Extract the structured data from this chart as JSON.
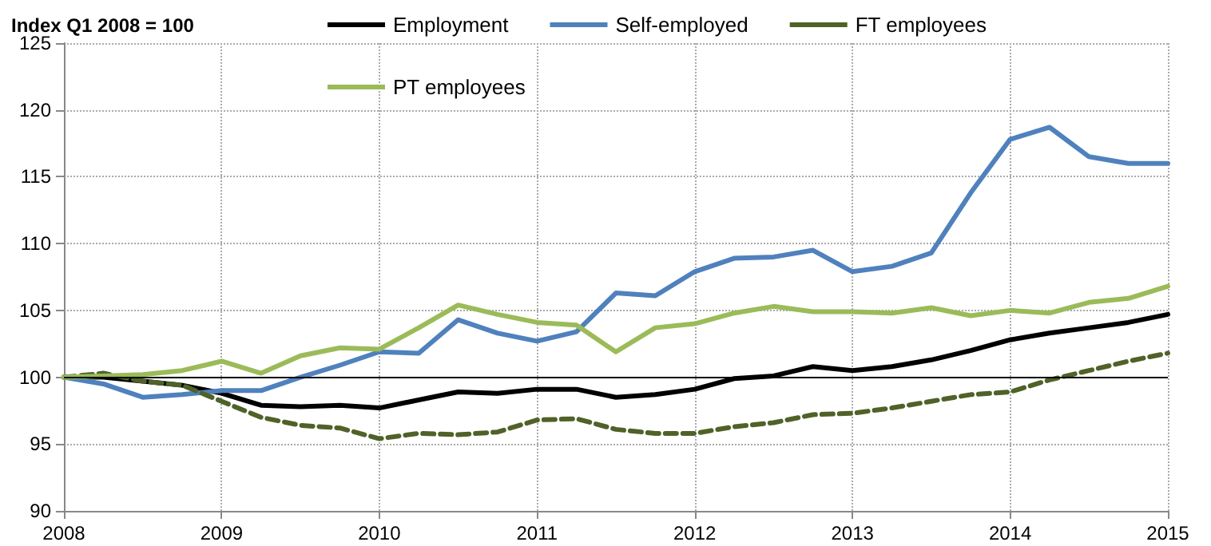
{
  "chart_data": {
    "type": "line",
    "title": "Index Q1 2008 = 100",
    "x": [
      2008,
      2008.25,
      2008.5,
      2008.75,
      2009,
      2009.25,
      2009.5,
      2009.75,
      2010,
      2010.25,
      2010.5,
      2010.75,
      2011,
      2011.25,
      2011.5,
      2011.75,
      2012,
      2012.25,
      2012.5,
      2012.75,
      2013,
      2013.25,
      2013.5,
      2013.75,
      2014,
      2014.25,
      2014.5,
      2014.75,
      2015
    ],
    "series": [
      {
        "name": "Employment",
        "color": "#000000",
        "values": [
          100,
          100,
          99.7,
          99.4,
          98.8,
          97.9,
          97.8,
          97.9,
          97.7,
          98.3,
          98.9,
          98.8,
          99.1,
          99.1,
          98.5,
          98.7,
          99.1,
          99.9,
          100.1,
          100.8,
          100.5,
          100.8,
          101.3,
          102,
          102.8,
          103.3,
          103.7,
          104.1,
          104.7
        ]
      },
      {
        "name": "Self-employed",
        "color": "#4f81bd",
        "values": [
          100,
          99.5,
          98.5,
          98.7,
          99.0,
          99.0,
          100.0,
          100.9,
          101.9,
          101.8,
          104.3,
          103.3,
          102.7,
          103.4,
          106.3,
          106.1,
          107.9,
          108.9,
          109.0,
          109.5,
          107.9,
          108.3,
          109.3,
          113.8,
          117.8,
          118.7,
          116.5,
          116.0,
          116.0
        ]
      },
      {
        "name": "FT employees",
        "color": "#4f6228",
        "line_style": "dashed",
        "values": [
          100,
          100.3,
          99.7,
          99.4,
          98.2,
          97.0,
          96.4,
          96.2,
          95.4,
          95.8,
          95.7,
          95.9,
          96.8,
          96.9,
          96.1,
          95.8,
          95.8,
          96.3,
          96.6,
          97.2,
          97.3,
          97.7,
          98.2,
          98.7,
          98.9,
          99.8,
          100.5,
          101.2,
          101.8
        ]
      },
      {
        "name": "PT employees",
        "color": "#9bbb59",
        "values": [
          100,
          100.1,
          100.2,
          100.5,
          101.2,
          100.3,
          101.6,
          102.2,
          102.1,
          103.7,
          105.4,
          104.7,
          104.1,
          103.9,
          101.9,
          103.7,
          104.0,
          104.8,
          105.3,
          104.9,
          104.9,
          104.8,
          105.2,
          104.6,
          105.0,
          104.8,
          105.6,
          105.9,
          106.8
        ]
      }
    ],
    "xlim": [
      2008,
      2015
    ],
    "xticks": [
      2008,
      2009,
      2010,
      2011,
      2012,
      2013,
      2014,
      2015
    ],
    "ylim": [
      90,
      125
    ],
    "yticks": [
      90,
      95,
      100,
      105,
      110,
      115,
      120,
      125
    ],
    "ref_lines": [
      {
        "axis": "y",
        "value": 100,
        "color": "#000000",
        "line_style": "solid"
      }
    ],
    "grid": true,
    "legend": "top",
    "marker": "none",
    "line_style": "solid"
  }
}
